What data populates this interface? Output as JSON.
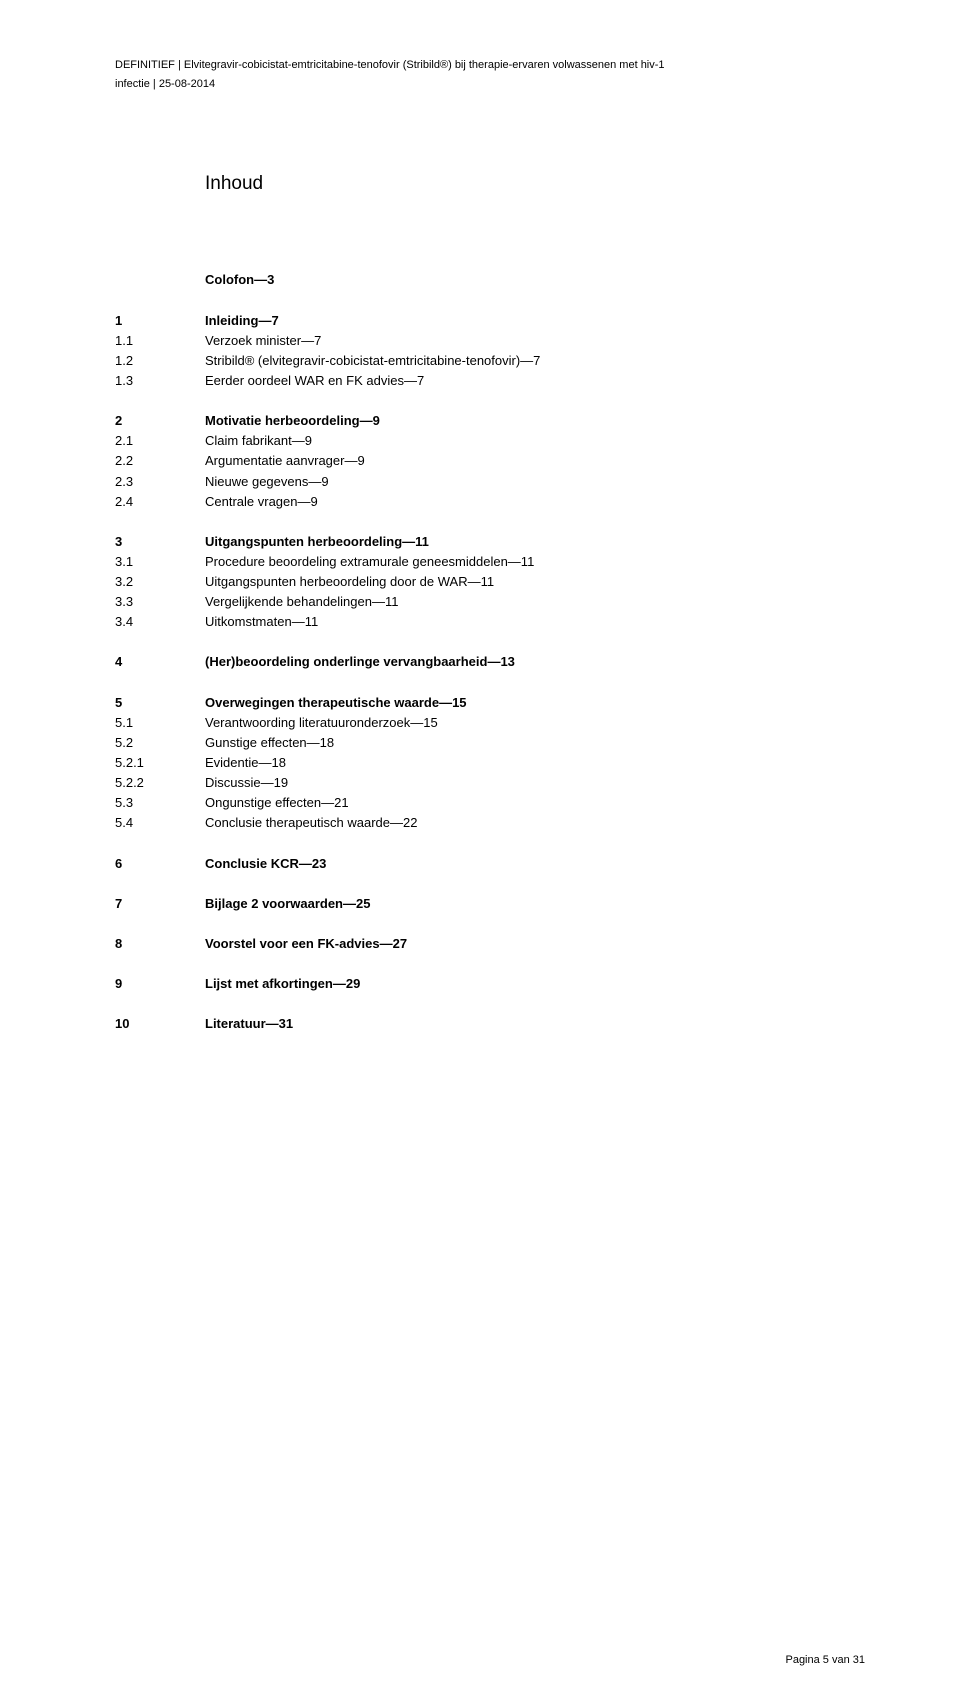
{
  "header": {
    "line1": "DEFINITIEF | Elvitegravir-cobicistat-emtricitabine-tenofovir (Stribild®) bij therapie-ervaren volwassenen met hiv-1",
    "line2": "infectie | 25-08-2014"
  },
  "title": "Inhoud",
  "colofon": "Colofon—3",
  "toc": [
    {
      "spaced": false,
      "items": [
        {
          "num": "1",
          "text": "Inleiding—7",
          "bold": true
        },
        {
          "num": "1.1",
          "text": "Verzoek minister—7",
          "bold": false
        },
        {
          "num": "1.2",
          "text": "Stribild® (elvitegravir-cobicistat-emtricitabine-tenofovir)—7",
          "bold": false
        },
        {
          "num": "1.3",
          "text": "Eerder oordeel WAR en FK advies—7",
          "bold": false
        }
      ]
    },
    {
      "spaced": false,
      "items": [
        {
          "num": "2",
          "text": "Motivatie herbeoordeling—9",
          "bold": true
        },
        {
          "num": "2.1",
          "text": "Claim fabrikant—9",
          "bold": false
        },
        {
          "num": "2.2",
          "text": "Argumentatie aanvrager—9",
          "bold": false
        },
        {
          "num": "2.3",
          "text": "Nieuwe gegevens—9",
          "bold": false
        },
        {
          "num": "2.4",
          "text": "Centrale vragen—9",
          "bold": false
        }
      ]
    },
    {
      "spaced": false,
      "items": [
        {
          "num": "3",
          "text": "Uitgangspunten herbeoordeling—11",
          "bold": true
        },
        {
          "num": "3.1",
          "text": "Procedure beoordeling extramurale geneesmiddelen—11",
          "bold": false
        },
        {
          "num": "3.2",
          "text": "Uitgangspunten herbeoordeling door de WAR—11",
          "bold": false
        },
        {
          "num": "3.3",
          "text": "Vergelijkende behandelingen—11",
          "bold": false
        },
        {
          "num": "3.4",
          "text": "Uitkomstmaten—11",
          "bold": false
        }
      ]
    },
    {
      "spaced": false,
      "items": [
        {
          "num": "4",
          "text": "(Her)beoordeling onderlinge vervangbaarheid—13",
          "bold": true
        }
      ]
    },
    {
      "spaced": false,
      "items": [
        {
          "num": "5",
          "text": "Overwegingen therapeutische waarde—15",
          "bold": true
        },
        {
          "num": "5.1",
          "text": "Verantwoording literatuuronderzoek—15",
          "bold": false
        },
        {
          "num": "5.2",
          "text": "Gunstige effecten—18",
          "bold": false
        },
        {
          "num": "5.2.1",
          "text": "Evidentie—18",
          "bold": false
        },
        {
          "num": "5.2.2",
          "text": "Discussie—19",
          "bold": false
        },
        {
          "num": "5.3",
          "text": "Ongunstige effecten—21",
          "bold": false
        },
        {
          "num": "5.4",
          "text": "Conclusie therapeutisch waarde—22",
          "bold": false
        }
      ]
    },
    {
      "spaced": true,
      "items": [
        {
          "num": "6",
          "text": "Conclusie KCR—23",
          "bold": true
        }
      ]
    },
    {
      "spaced": true,
      "items": [
        {
          "num": "7",
          "text": "Bijlage 2 voorwaarden—25",
          "bold": true
        }
      ]
    },
    {
      "spaced": true,
      "items": [
        {
          "num": "8",
          "text": "Voorstel voor een FK-advies—27",
          "bold": true
        }
      ]
    },
    {
      "spaced": true,
      "items": [
        {
          "num": "9",
          "text": "Lijst met afkortingen—29",
          "bold": true
        }
      ]
    },
    {
      "spaced": true,
      "items": [
        {
          "num": "10",
          "text": "Literatuur—31",
          "bold": true
        }
      ]
    }
  ],
  "footer": "Pagina 5 van 31"
}
